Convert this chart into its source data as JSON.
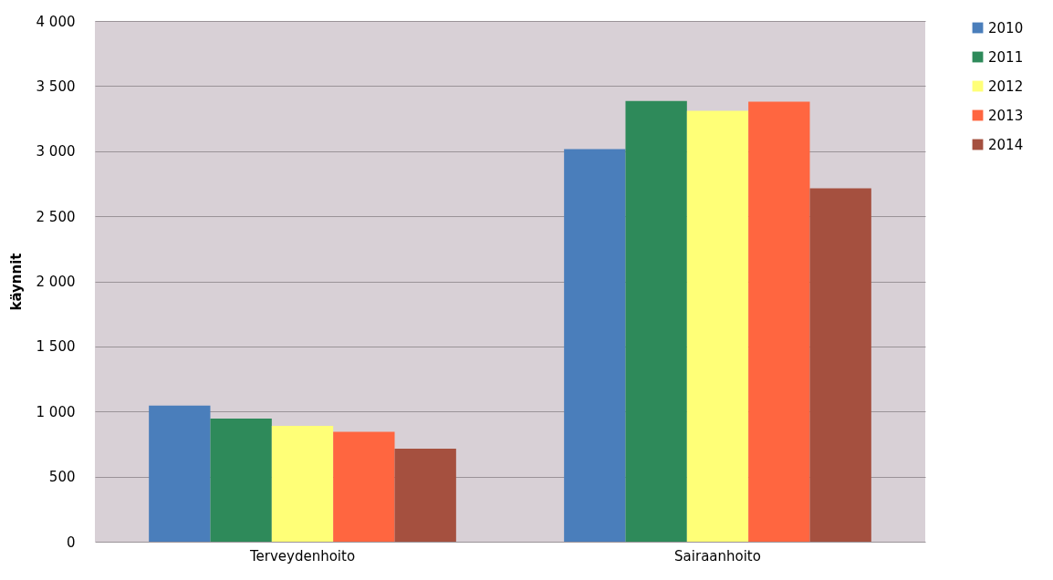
{
  "chart_data": {
    "type": "bar",
    "ylabel": "käynnit",
    "categories": [
      "Terveydenhoito",
      "Sairaanhoito"
    ],
    "series": [
      {
        "name": "2010",
        "color": "#4a7ebb",
        "values": [
          1045,
          3015
        ]
      },
      {
        "name": "2011",
        "color": "#2e8a5a",
        "values": [
          945,
          3385
        ]
      },
      {
        "name": "2012",
        "color": "#ffff77",
        "values": [
          890,
          3310
        ]
      },
      {
        "name": "2013",
        "color": "#ff6640",
        "values": [
          845,
          3380
        ]
      },
      {
        "name": "2014",
        "color": "#a5503f",
        "values": [
          715,
          2715
        ]
      }
    ],
    "ylim": [
      0,
      4000
    ],
    "yticks": [
      {
        "value": 0,
        "label": "0"
      },
      {
        "value": 500,
        "label": "500"
      },
      {
        "value": 1000,
        "label": "1 000"
      },
      {
        "value": 1500,
        "label": "1 500"
      },
      {
        "value": 2000,
        "label": "2 000"
      },
      {
        "value": 2500,
        "label": "2 500"
      },
      {
        "value": 3000,
        "label": "3 000"
      },
      {
        "value": 3500,
        "label": "3 500"
      },
      {
        "value": 4000,
        "label": "4 000"
      }
    ],
    "grid": "y",
    "legend": "right"
  }
}
